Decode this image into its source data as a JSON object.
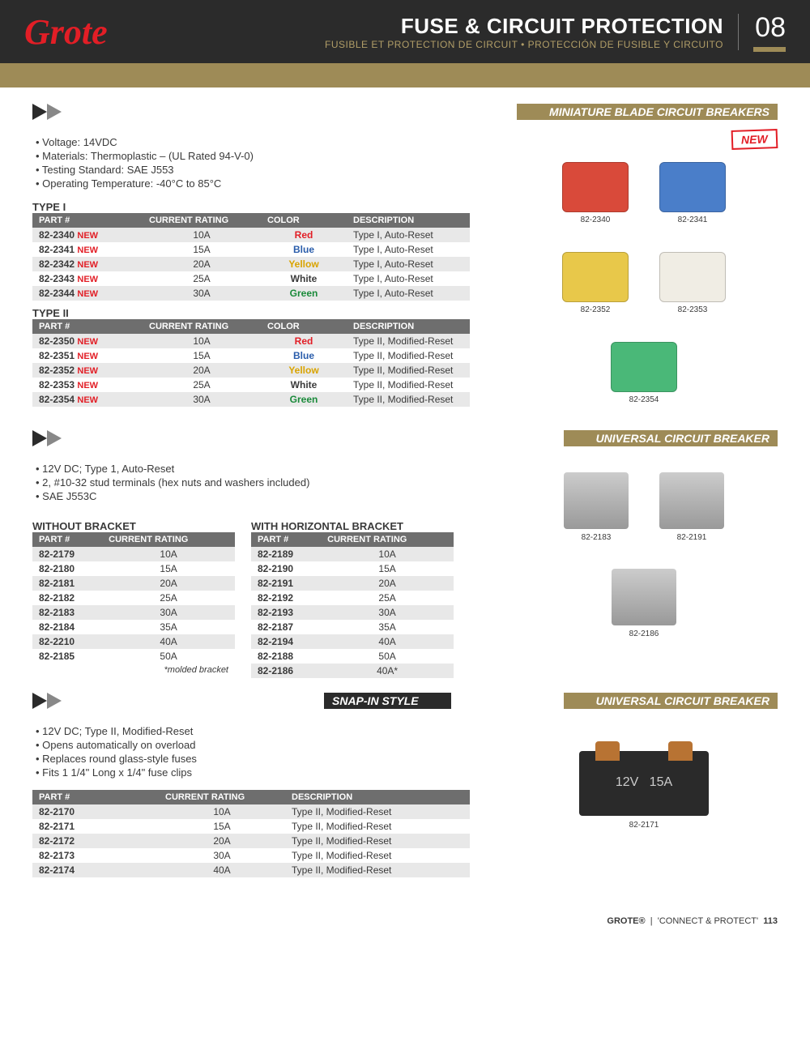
{
  "header": {
    "logo": "Grote",
    "title": "FUSE & CIRCUIT PROTECTION",
    "subtitle": "FUSIBLE ET PROTECTION DE CIRCUIT • PROTECCIÓN DE FUSIBLE Y CIRCUITO",
    "chapter": "08"
  },
  "section1": {
    "label": "MINIATURE BLADE CIRCUIT BREAKERS",
    "new_badge": "NEW",
    "bullets": [
      "Voltage: 14VDC",
      "Materials: Thermoplastic – (UL Rated 94-V-0)",
      "Testing Standard: SAE J553",
      "Operating Temperature: -40°C to 85°C"
    ],
    "type1_title": "TYPE I",
    "type2_title": "TYPE II",
    "columns": [
      "PART #",
      "CURRENT RATING",
      "COLOR",
      "DESCRIPTION"
    ],
    "type1_rows": [
      {
        "part": "82-2340",
        "new": true,
        "rating": "10A",
        "color": "Red",
        "color_hex": "#e21e26",
        "desc": "Type I, Auto-Reset"
      },
      {
        "part": "82-2341",
        "new": true,
        "rating": "15A",
        "color": "Blue",
        "color_hex": "#2a5dab",
        "desc": "Type I, Auto-Reset"
      },
      {
        "part": "82-2342",
        "new": true,
        "rating": "20A",
        "color": "Yellow",
        "color_hex": "#d9a400",
        "desc": "Type I, Auto-Reset"
      },
      {
        "part": "82-2343",
        "new": true,
        "rating": "25A",
        "color": "White",
        "color_hex": "#3a3a3a",
        "desc": "Type I, Auto-Reset"
      },
      {
        "part": "82-2344",
        "new": true,
        "rating": "30A",
        "color": "Green",
        "color_hex": "#1a8a3a",
        "desc": "Type I, Auto-Reset"
      }
    ],
    "type2_rows": [
      {
        "part": "82-2350",
        "new": true,
        "rating": "10A",
        "color": "Red",
        "color_hex": "#e21e26",
        "desc": "Type II, Modified-Reset"
      },
      {
        "part": "82-2351",
        "new": true,
        "rating": "15A",
        "color": "Blue",
        "color_hex": "#2a5dab",
        "desc": "Type II, Modified-Reset"
      },
      {
        "part": "82-2352",
        "new": true,
        "rating": "20A",
        "color": "Yellow",
        "color_hex": "#d9a400",
        "desc": "Type II, Modified-Reset"
      },
      {
        "part": "82-2353",
        "new": true,
        "rating": "25A",
        "color": "White",
        "color_hex": "#3a3a3a",
        "desc": "Type II, Modified-Reset"
      },
      {
        "part": "82-2354",
        "new": true,
        "rating": "30A",
        "color": "Green",
        "color_hex": "#1a8a3a",
        "desc": "Type II, Modified-Reset"
      }
    ],
    "products": [
      {
        "label": "82-2340",
        "bg": "#d94a3a"
      },
      {
        "label": "82-2341",
        "bg": "#4a7ec9"
      },
      {
        "label": "82-2352",
        "bg": "#e8c84a"
      },
      {
        "label": "82-2353",
        "bg": "#f0ede4"
      },
      {
        "label": "82-2354",
        "bg": "#4ab878"
      }
    ]
  },
  "section2": {
    "label": "UNIVERSAL CIRCUIT BREAKER",
    "bullets": [
      "12V DC; Type 1, Auto-Reset",
      "2, #10-32 stud terminals (hex nuts and washers included)",
      "SAE J553C"
    ],
    "table_a_title": "WITHOUT BRACKET",
    "table_b_title": "WITH HORIZONTAL BRACKET",
    "columns": [
      "PART #",
      "CURRENT RATING"
    ],
    "rows_a": [
      {
        "part": "82-2179",
        "rating": "10A"
      },
      {
        "part": "82-2180",
        "rating": "15A"
      },
      {
        "part": "82-2181",
        "rating": "20A"
      },
      {
        "part": "82-2182",
        "rating": "25A"
      },
      {
        "part": "82-2183",
        "rating": "30A"
      },
      {
        "part": "82-2184",
        "rating": "35A"
      },
      {
        "part": "82-2210",
        "rating": "40A"
      },
      {
        "part": "82-2185",
        "rating": "50A"
      }
    ],
    "rows_b": [
      {
        "part": "82-2189",
        "rating": "10A"
      },
      {
        "part": "82-2190",
        "rating": "15A"
      },
      {
        "part": "82-2191",
        "rating": "20A"
      },
      {
        "part": "82-2192",
        "rating": "25A"
      },
      {
        "part": "82-2193",
        "rating": "30A"
      },
      {
        "part": "82-2187",
        "rating": "35A"
      },
      {
        "part": "82-2194",
        "rating": "40A"
      },
      {
        "part": "82-2188",
        "rating": "50A"
      },
      {
        "part": "82-2186",
        "rating": "40A*"
      }
    ],
    "footnote": "*molded bracket",
    "products": [
      {
        "label": "82-2183"
      },
      {
        "label": "82-2191"
      },
      {
        "label": "82-2186"
      }
    ]
  },
  "section3": {
    "label_left": "SNAP-IN STYLE",
    "label_right": "UNIVERSAL CIRCUIT BREAKER",
    "bullets": [
      "12V DC; Type II, Modified-Reset",
      "Opens automatically on overload",
      "Replaces round glass-style fuses",
      "Fits 1 1/4\" Long x 1/4\" fuse clips"
    ],
    "columns": [
      "PART #",
      "CURRENT RATING",
      "DESCRIPTION"
    ],
    "rows": [
      {
        "part": "82-2170",
        "rating": "10A",
        "desc": "Type II, Modified-Reset"
      },
      {
        "part": "82-2171",
        "rating": "15A",
        "desc": "Type II, Modified-Reset"
      },
      {
        "part": "82-2172",
        "rating": "20A",
        "desc": "Type II, Modified-Reset"
      },
      {
        "part": "82-2173",
        "rating": "30A",
        "desc": "Type II, Modified-Reset"
      },
      {
        "part": "82-2174",
        "rating": "40A",
        "desc": "Type II, Modified-Reset"
      }
    ],
    "product_text1": "12V",
    "product_text2": "15A",
    "product_label": "82-2171"
  },
  "footer": {
    "brand": "GROTE®",
    "tagline": "'CONNECT & PROTECT'",
    "page": "113"
  },
  "colors": {
    "header_bg": "#2b2b2b",
    "gold": "#9e8b57",
    "red": "#e21e26",
    "th_bg": "#6e6e6e",
    "row_odd": "#e8e8e8"
  }
}
